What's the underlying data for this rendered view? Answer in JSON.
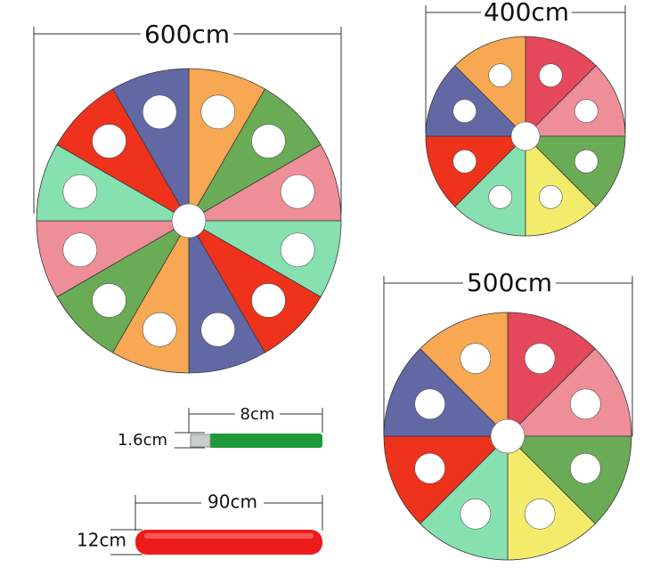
{
  "dimensions": {
    "large_wheel": "600cm",
    "small_wheel": "400cm",
    "medium_wheel": "500cm",
    "strap_length": "8cm",
    "strap_width": "1.6cm",
    "bar_length": "90cm",
    "bar_height": "12cm"
  }
}
